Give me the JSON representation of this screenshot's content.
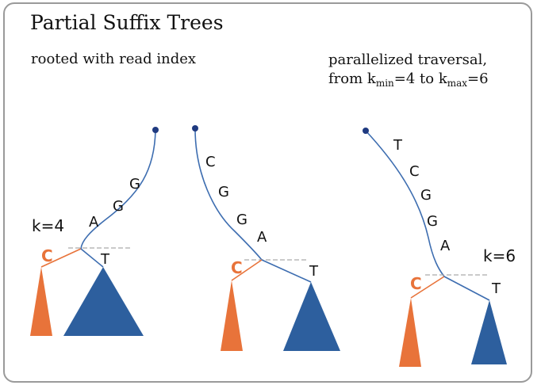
{
  "title": "Partial Suffix Trees",
  "subtitle_left": "rooted with read index",
  "subtitle_right": {
    "line1": "parallelized traversal,",
    "from_word": "from k",
    "min_sub": "min",
    "min_val": "=4 to k",
    "max_sub": "max",
    "max_val": "=6"
  },
  "colors": {
    "edge_blue": "#3d6db0",
    "edge_orange": "#e8733a",
    "subtree_blue": "#2d5f9e",
    "subtree_orange": "#e8733a",
    "root_node": "#1f3a80",
    "cut_line": "#aaaaaa"
  },
  "trees": [
    {
      "name": "tree-1",
      "path_letters": [
        "G",
        "G",
        "A"
      ],
      "k_label": "k=4",
      "branch_left": "C",
      "branch_right": "T"
    },
    {
      "name": "tree-2",
      "path_letters": [
        "C",
        "G",
        "G",
        "A"
      ],
      "k_label": "",
      "branch_left": "C",
      "branch_right": "T"
    },
    {
      "name": "tree-3",
      "path_letters": [
        "T",
        "C",
        "G",
        "G",
        "A"
      ],
      "k_label": "k=6",
      "branch_left": "C",
      "branch_right": "T"
    }
  ]
}
